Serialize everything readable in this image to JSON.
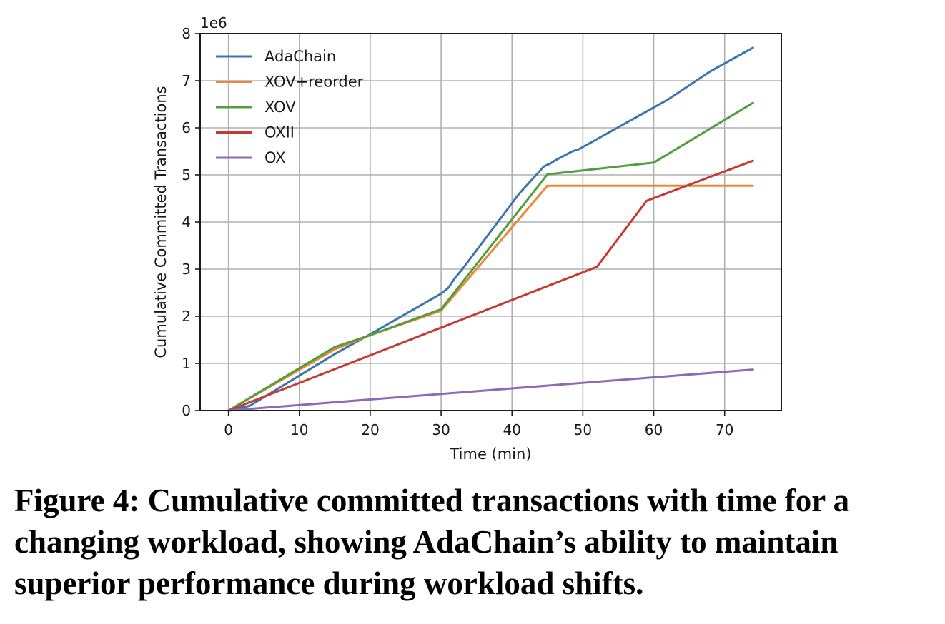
{
  "caption": "Figure 4: Cumulative committed transactions with time for a changing workload, showing AdaChain’s ability to maintain superior performance during workload shifts.",
  "chart_data": {
    "type": "line",
    "xlabel": "Time (min)",
    "ylabel": "Cumulative Committed Transactions",
    "y_offset_label": "1e6",
    "xlim": [
      -4,
      78
    ],
    "ylim": [
      0,
      8
    ],
    "xticks": [
      0,
      10,
      20,
      30,
      40,
      50,
      60,
      70
    ],
    "yticks": [
      0,
      1,
      2,
      3,
      4,
      5,
      6,
      7,
      8
    ],
    "grid": true,
    "legend_position": "upper-left",
    "series": [
      {
        "name": "AdaChain",
        "color": "#3b75af",
        "x": [
          0,
          3,
          15,
          20,
          30,
          31,
          32,
          33,
          41,
          44.5,
          45.5,
          46,
          47,
          48.5,
          49.5,
          62,
          67,
          68,
          74
        ],
        "y": [
          0,
          0.1,
          1.2,
          1.62,
          2.48,
          2.6,
          2.82,
          3.0,
          4.6,
          5.18,
          5.25,
          5.3,
          5.38,
          5.5,
          5.55,
          6.6,
          7.1,
          7.2,
          7.7
        ]
      },
      {
        "name": "XOV+reorder",
        "color": "#ef8636",
        "x": [
          0,
          15,
          20,
          30,
          45,
          74
        ],
        "y": [
          0,
          1.3,
          1.6,
          2.12,
          4.77,
          4.77
        ]
      },
      {
        "name": "XOV",
        "color": "#519e3e",
        "x": [
          0,
          15,
          20,
          30,
          45,
          60,
          74
        ],
        "y": [
          0,
          1.35,
          1.6,
          2.15,
          5.01,
          5.26,
          6.53
        ]
      },
      {
        "name": "OXII",
        "color": "#c53a32",
        "x": [
          0,
          52,
          59,
          74
        ],
        "y": [
          0,
          3.05,
          4.45,
          5.3
        ]
      },
      {
        "name": "OX",
        "color": "#8d69b8",
        "x": [
          0,
          74
        ],
        "y": [
          0,
          0.87
        ]
      }
    ]
  }
}
